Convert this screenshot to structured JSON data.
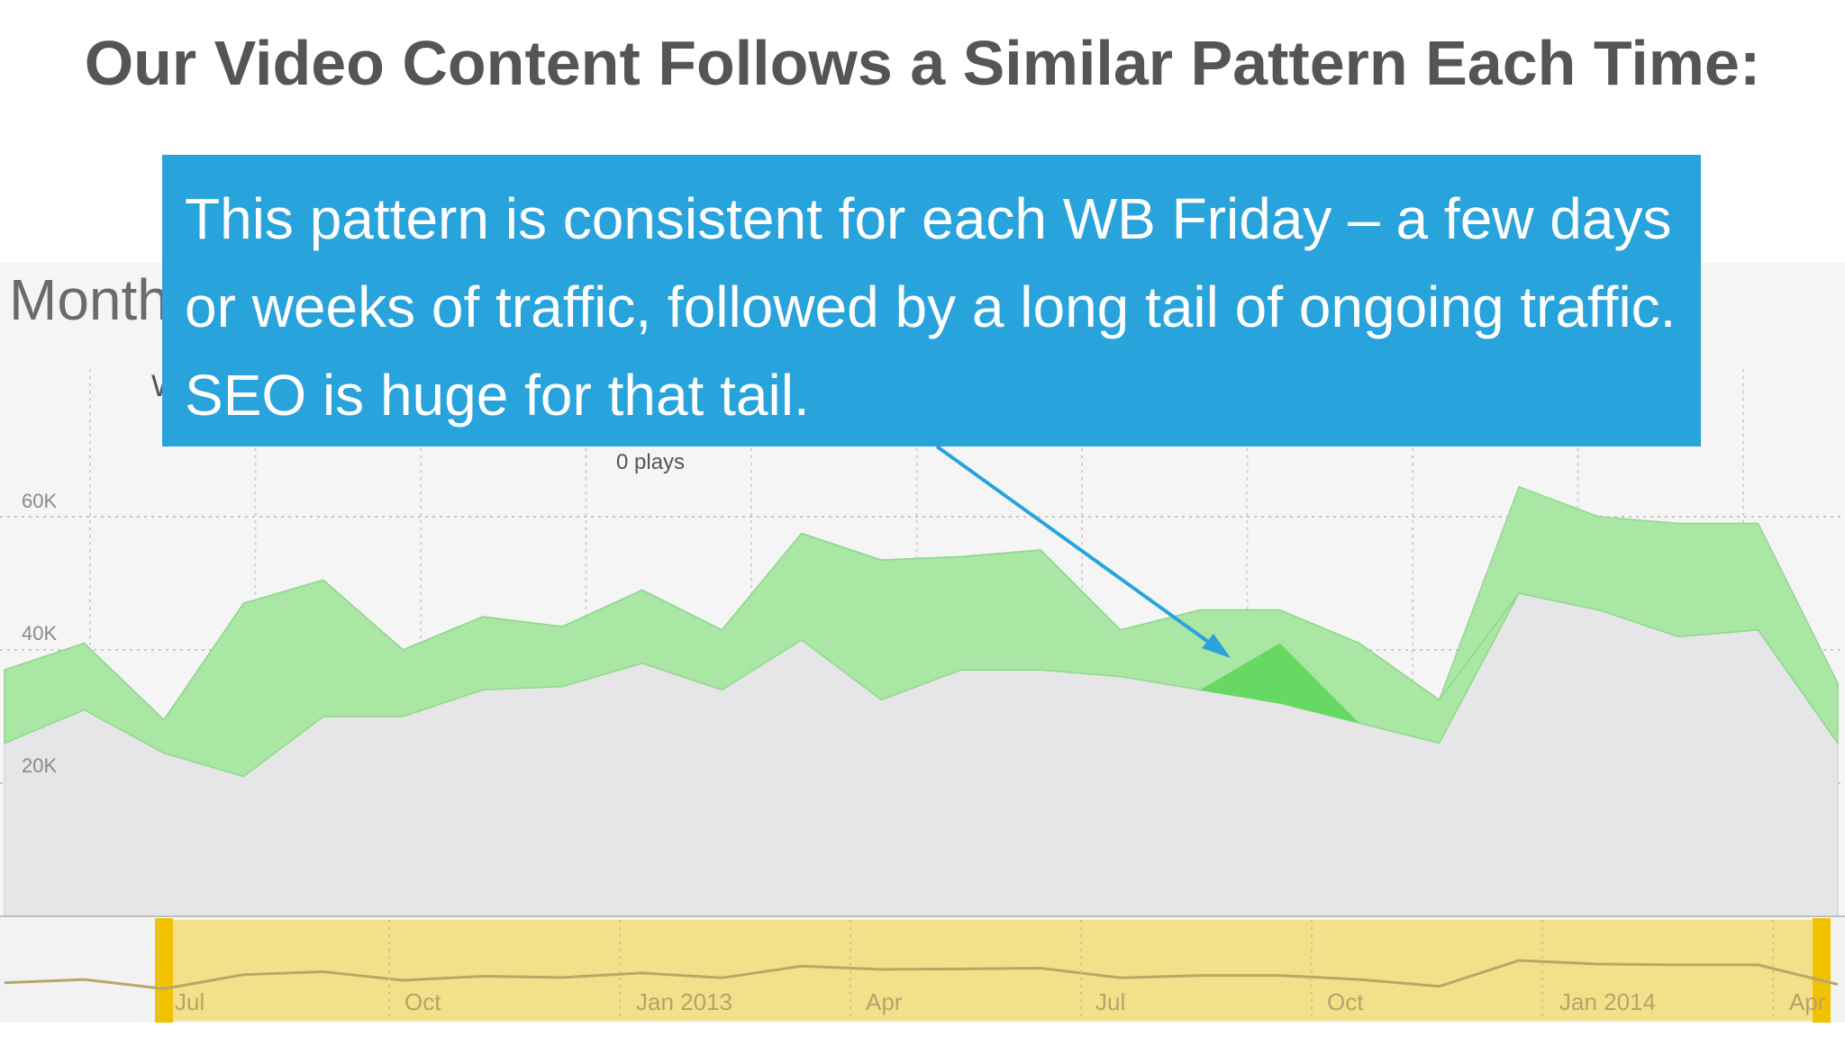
{
  "slide": {
    "title": "Our Video Content Follows a Similar Pattern Each Time:"
  },
  "callout": {
    "text": "This pattern is consistent for each WB Friday – a few days or weeks of traffic, followed by a long tail of ongoing traffic. SEO is huge for that tail.",
    "background": "#29a3db"
  },
  "colors": {
    "base_area": "#e6e6e8",
    "green_band": "#a6e6a0",
    "green_highlight": "#5fd65a",
    "navigator_fill": "#f4e08a",
    "navigator_handle": "#f2c100",
    "arrow": "#29a3db"
  },
  "chart_data": {
    "type": "area",
    "title": "Month",
    "subtitle": "W",
    "hover_label": "0 plays",
    "ylim": [
      0,
      90000
    ],
    "yticks": [
      "20K",
      "40K",
      "60K"
    ],
    "ytick_values": [
      20000,
      40000,
      60000
    ],
    "grid": true,
    "x": [
      "2012-05",
      "2012-06",
      "2012-07",
      "2012-08",
      "2012-09",
      "2012-10",
      "2012-11",
      "2012-12",
      "2013-01",
      "2013-02",
      "2013-03",
      "2013-04",
      "2013-05",
      "2013-06",
      "2013-07",
      "2013-08",
      "2013-09",
      "2013-10",
      "2013-11",
      "2013-12",
      "2014-01",
      "2014-02",
      "2014-03",
      "2014-04"
    ],
    "series": [
      {
        "values": [
          26000,
          31000,
          24500,
          21000,
          30000,
          30000,
          34000,
          34500,
          38000,
          34000,
          41500,
          32500,
          37000,
          37000,
          36000,
          34000,
          32000,
          29000,
          26000,
          48500,
          46000,
          42000,
          43000,
          26000
        ]
      },
      {
        "values": [
          11000,
          10000,
          5000,
          26000,
          20500,
          10000,
          11000,
          9000,
          11000,
          9000,
          16000,
          21000,
          17000,
          18000,
          7000,
          12000,
          14000,
          12000,
          6500,
          0,
          0,
          0,
          0,
          0
        ]
      },
      {
        "values": [
          0,
          0,
          0,
          0,
          0,
          0,
          0,
          0,
          0,
          0,
          0,
          0,
          0,
          0,
          0,
          0,
          0,
          0,
          0,
          16000,
          14000,
          17000,
          16000,
          9000
        ]
      }
    ],
    "highlight": {
      "x_from": "2013-08",
      "x_to": "2013-10",
      "values": [
        0,
        9000,
        0
      ]
    },
    "navigator": {
      "xticks": [
        "Jul",
        "Oct",
        "Jan 2013",
        "Apr",
        "Jul",
        "Oct",
        "Jan 2014",
        "Apr"
      ]
    }
  }
}
